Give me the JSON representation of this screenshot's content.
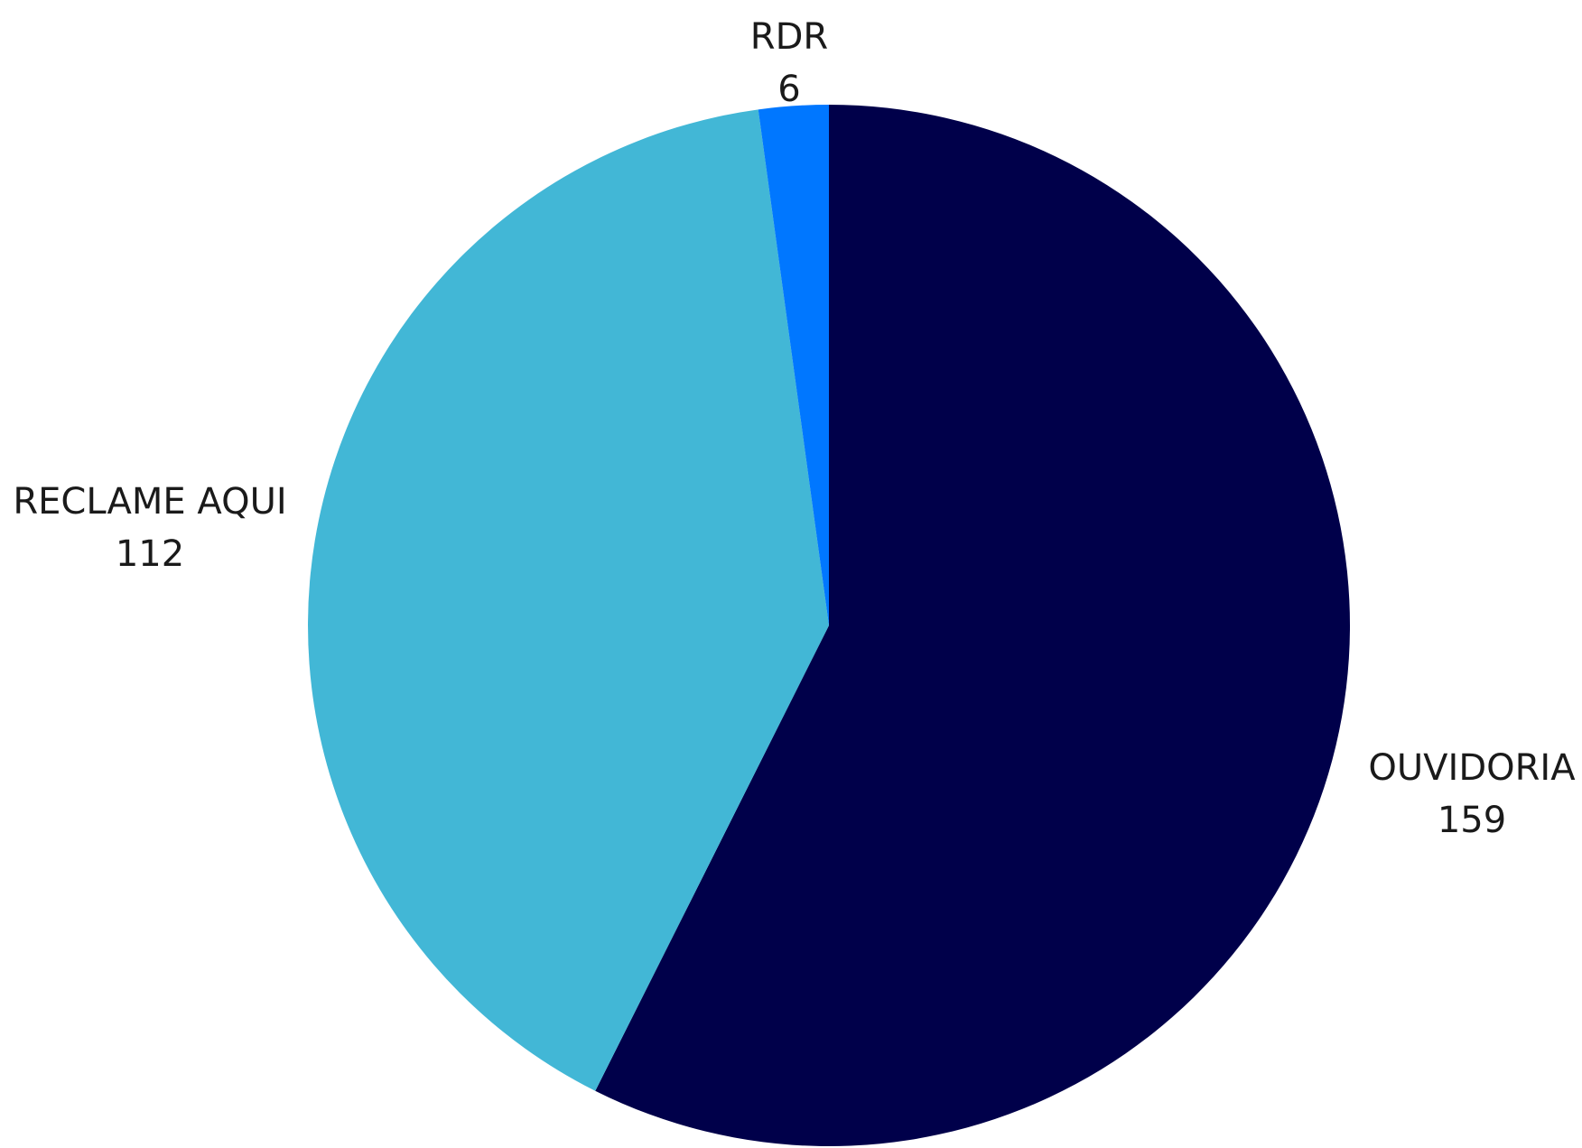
{
  "chart_data": {
    "type": "pie",
    "title": "",
    "start_angle_deg": 0,
    "direction": "clockwise",
    "slices": [
      {
        "label": "OUVIDORIA",
        "value": 159,
        "value_label": "159",
        "color": "#00004a"
      },
      {
        "label": "RECLAME AQUI",
        "value": 112,
        "value_label": "112",
        "color": "#42b7d6"
      },
      {
        "label": "RDR",
        "value": 6,
        "value_label": "6",
        "color": "#0077ff"
      }
    ]
  }
}
